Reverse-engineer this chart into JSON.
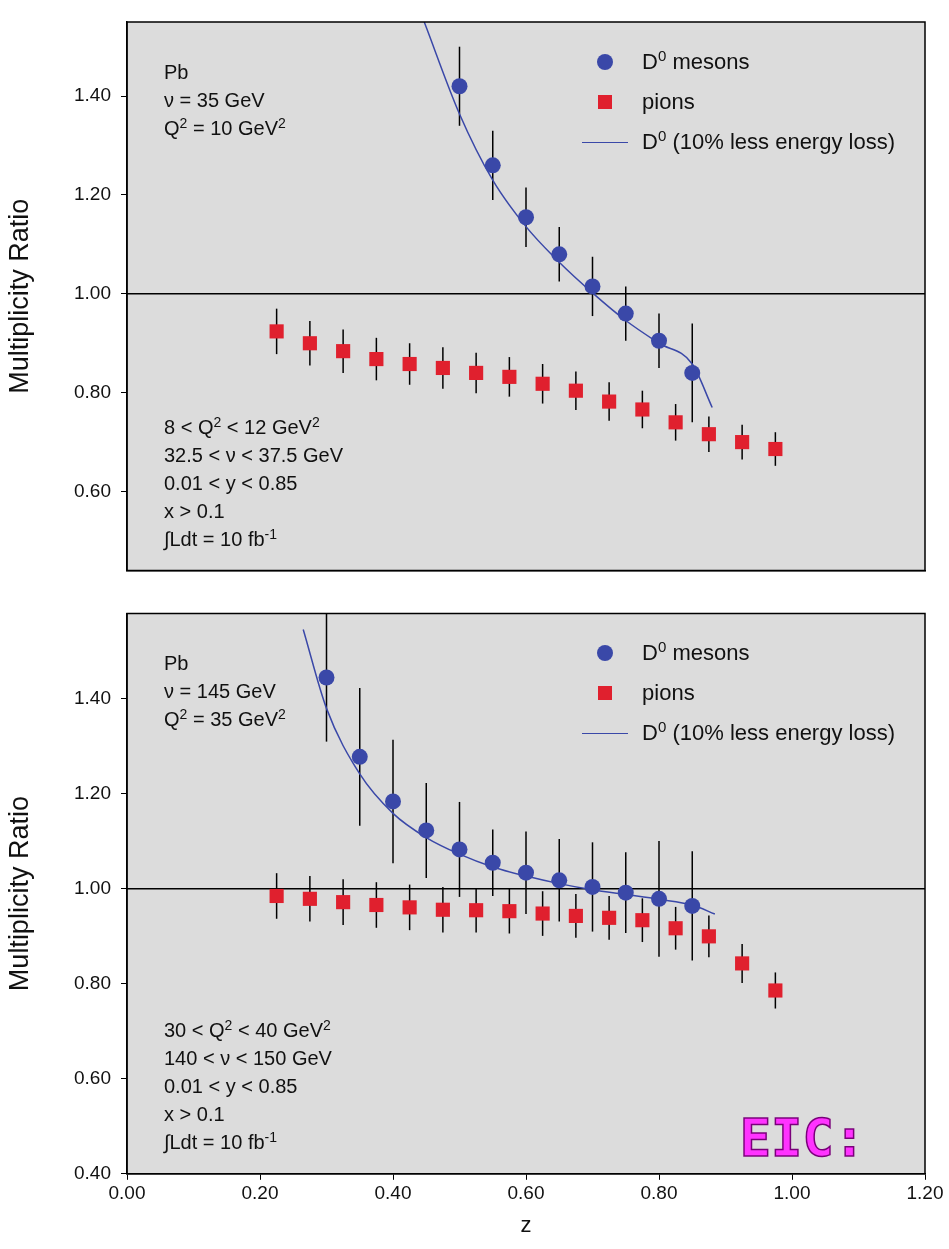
{
  "chart_data": [
    {
      "type": "scatter",
      "ylabel": "Multiplicity Ratio",
      "xlim": [
        0,
        1.2
      ],
      "ylim": [
        0.44,
        1.55
      ],
      "yticks": [
        {
          "value": 0.6,
          "label": "0.60"
        },
        {
          "value": 0.8,
          "label": "0.80"
        },
        {
          "value": 1,
          "label": "1.00"
        },
        {
          "value": 1.2,
          "label": "1.20"
        },
        {
          "value": 1.4,
          "label": "1.40"
        }
      ],
      "tick_labels": "y",
      "legend": "top right",
      "ref_lines": [
        {
          "axis": "y",
          "value": 1,
          "color": "#000000"
        }
      ],
      "annotations": [
        "Pb\nν = 35 GeV\nQ$^{2}$ = 10 GeV$^{2}$",
        "8  < Q$^{2}$ < 12 GeV$^{2}$\n32.5 < ν < 37.5 GeV\n0.01 < y < 0.85\nx > 0.1\n∫Ldt = 10 fb$^{-1}$"
      ],
      "series": [
        {
          "name": "D$^{0}$ mesons",
          "type": "scatter",
          "marker": "circle",
          "color": "#3a48a8",
          "x": [
            0.5,
            0.55,
            0.6,
            0.65,
            0.7,
            0.75,
            0.8,
            0.85
          ],
          "values": [
            1.42,
            1.26,
            1.155,
            1.08,
            1.015,
            0.96,
            0.905,
            0.84
          ],
          "errors": [
            0.08,
            0.07,
            0.06,
            0.055,
            0.06,
            0.055,
            0.055,
            0.1
          ]
        },
        {
          "name": "pions",
          "type": "scatter",
          "marker": "square",
          "color": "#e0202e",
          "x": [
            0.225,
            0.275,
            0.325,
            0.375,
            0.425,
            0.475,
            0.525,
            0.575,
            0.625,
            0.675,
            0.725,
            0.775,
            0.825,
            0.875,
            0.925,
            0.975
          ],
          "values": [
            0.924,
            0.9,
            0.884,
            0.868,
            0.858,
            0.85,
            0.84,
            0.832,
            0.818,
            0.804,
            0.782,
            0.766,
            0.74,
            0.716,
            0.7,
            0.686
          ],
          "errors": [
            0.046,
            0.045,
            0.044,
            0.043,
            0.042,
            0.042,
            0.041,
            0.04,
            0.04,
            0.039,
            0.039,
            0.038,
            0.037,
            0.036,
            0.035,
            0.034
          ]
        },
        {
          "name": "D$^{0}$ (10% less energy loss)",
          "type": "line",
          "marker": "none",
          "color": "#3a48a8",
          "x": [
            0.447,
            0.5,
            0.55,
            0.6,
            0.65,
            0.7,
            0.75,
            0.8,
            0.85,
            0.88
          ],
          "values": [
            1.55,
            1.364,
            1.23,
            1.136,
            1.064,
            1.002,
            0.946,
            0.9,
            0.858,
            0.77
          ]
        }
      ]
    },
    {
      "type": "scatter",
      "ylabel": "Multiplicity Ratio",
      "xlabel": "z",
      "xlim": [
        0,
        1.2
      ],
      "ylim": [
        0.4,
        1.58
      ],
      "xticks": [
        {
          "value": 0,
          "label": "0.00"
        },
        {
          "value": 0.2,
          "label": "0.20"
        },
        {
          "value": 0.4,
          "label": "0.40"
        },
        {
          "value": 0.6,
          "label": "0.60"
        },
        {
          "value": 0.8,
          "label": "0.80"
        },
        {
          "value": 1,
          "label": "1.00"
        },
        {
          "value": 1.2,
          "label": "1.20"
        }
      ],
      "yticks": [
        {
          "value": 0.4,
          "label": "0.40"
        },
        {
          "value": 0.6,
          "label": "0.60"
        },
        {
          "value": 0.8,
          "label": "0.80"
        },
        {
          "value": 1,
          "label": "1.00"
        },
        {
          "value": 1.2,
          "label": "1.20"
        },
        {
          "value": 1.4,
          "label": "1.40"
        }
      ],
      "legend": "top right",
      "ref_lines": [
        {
          "axis": "y",
          "value": 1,
          "color": "#000000"
        }
      ],
      "annotations": [
        "Pb\nν = 145 GeV\nQ$^{2}$ = 35 GeV$^{2}$",
        "30  < Q$^{2}$ < 40 GeV$^{2}$\n140 < ν < 150 GeV\n0.01 < y < 0.85\nx > 0.1\n∫Ldt = 10 fb$^{-1}$",
        "EIC:"
      ],
      "series": [
        {
          "name": "D$^{0}$ mesons",
          "type": "scatter",
          "marker": "circle",
          "color": "#3a48a8",
          "x": [
            0.3,
            0.35,
            0.4,
            0.45,
            0.5,
            0.55,
            0.6,
            0.65,
            0.7,
            0.75,
            0.8,
            0.85
          ],
          "values": [
            1.445,
            1.278,
            1.184,
            1.123,
            1.083,
            1.055,
            1.034,
            1.018,
            1.004,
            0.992,
            0.979,
            0.964
          ],
          "errors": [
            0.135,
            0.145,
            0.13,
            0.1,
            0.1,
            0.07,
            0.087,
            0.087,
            0.094,
            0.085,
            0.122,
            0.115
          ]
        },
        {
          "name": "pions",
          "type": "scatter",
          "marker": "square",
          "color": "#e0202e",
          "x": [
            0.225,
            0.275,
            0.325,
            0.375,
            0.425,
            0.475,
            0.525,
            0.575,
            0.625,
            0.675,
            0.725,
            0.775,
            0.825,
            0.875,
            0.925,
            0.975
          ],
          "values": [
            0.985,
            0.979,
            0.972,
            0.966,
            0.961,
            0.956,
            0.955,
            0.953,
            0.948,
            0.943,
            0.939,
            0.934,
            0.917,
            0.9,
            0.843,
            0.786
          ],
          "errors": [
            0.048,
            0.048,
            0.048,
            0.048,
            0.048,
            0.048,
            0.047,
            0.047,
            0.047,
            0.046,
            0.046,
            0.046,
            0.045,
            0.044,
            0.041,
            0.038
          ]
        },
        {
          "name": "D$^{0}$ (10% less energy loss)",
          "type": "line",
          "marker": "none",
          "color": "#3a48a8",
          "x": [
            0.265,
            0.3,
            0.35,
            0.4,
            0.45,
            0.5,
            0.55,
            0.6,
            0.65,
            0.7,
            0.75,
            0.8,
            0.85,
            0.884
          ],
          "values": [
            1.546,
            1.38,
            1.242,
            1.159,
            1.108,
            1.073,
            1.046,
            1.027,
            1.011,
            0.998,
            0.988,
            0.978,
            0.966,
            0.947
          ]
        }
      ]
    }
  ]
}
